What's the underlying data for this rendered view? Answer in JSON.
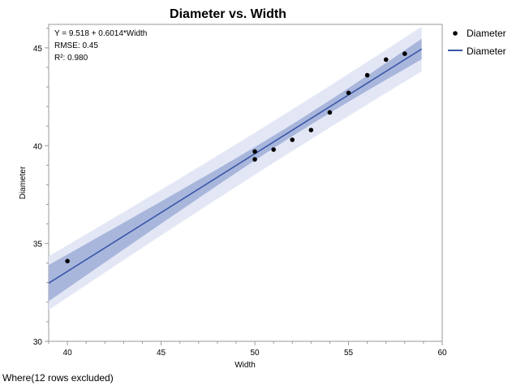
{
  "chart_data": {
    "type": "scatter",
    "title": "Diameter vs. Width",
    "xlabel": "Width",
    "ylabel": "Diameter",
    "xlim": [
      39,
      60
    ],
    "ylim": [
      30,
      46.2
    ],
    "x_ticks": [
      40,
      45,
      50,
      55,
      60
    ],
    "y_ticks": [
      30,
      35,
      40,
      45
    ],
    "x_tick_labels": [
      "40",
      "45",
      "50",
      "55",
      "60"
    ],
    "y_tick_labels": [
      "30",
      "35",
      "40",
      "45"
    ],
    "grid": false,
    "legend_position": "top-right",
    "series": [
      {
        "name": "Diameter",
        "kind": "points",
        "color": "#000000",
        "x": [
          40,
          50,
          50,
          51,
          52,
          53,
          54,
          55,
          56,
          57,
          58
        ],
        "y": [
          34.1,
          39.7,
          39.3,
          39.8,
          40.3,
          40.8,
          41.7,
          42.7,
          43.6,
          44.4,
          44.7
        ]
      },
      {
        "name": "Diameter",
        "kind": "fit-line",
        "color": "#3a57a7",
        "intercept": 9.518,
        "slope": 0.6014,
        "x_range": [
          39,
          58.9
        ]
      }
    ],
    "bands": {
      "fit_color": "#a9b6dc",
      "prediction_color": "#e3e7f5"
    },
    "annotations": {
      "equation": "Y = 9.518 + 0.6014*Width",
      "rmse": "RMSE: 0.45",
      "r2": "R²: 0.980"
    },
    "legend": [
      {
        "label": "Diameter",
        "marker": "point"
      },
      {
        "label": "Diameter",
        "marker": "line"
      }
    ]
  },
  "footer": {
    "note": "Where(12 rows excluded)"
  }
}
